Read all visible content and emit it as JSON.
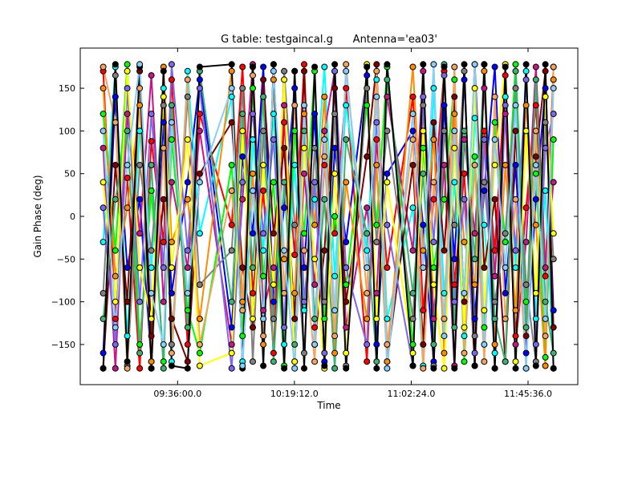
{
  "chart_data": {
    "type": "line",
    "title": "G table: testgaincal.g      Antenna='ea03'",
    "xlabel": "Time",
    "ylabel": "Gain Phase (deg)",
    "xlim": [
      "09:00:00",
      "12:04:00"
    ],
    "ylim": [
      -197,
      197
    ],
    "xticks": [
      "09:36:00.0",
      "10:19:12.0",
      "11:02:24.0",
      "11:45:36.0"
    ],
    "yticks": [
      150,
      100,
      50,
      0,
      -50,
      -100,
      -150
    ],
    "grid": false,
    "markers": "circle, black edge",
    "x": [
      "09:08:30",
      "09:13:00",
      "09:17:24",
      "09:22:00",
      "09:26:18",
      "09:30:48",
      "09:33:48",
      "09:39:42",
      "09:44:12",
      "09:56:00",
      "10:00:00",
      "10:03:48",
      "10:07:42",
      "10:11:30",
      "10:15:24",
      "10:19:18",
      "10:22:48",
      "10:26:42",
      "10:30:18",
      "10:34:06",
      "10:38:18",
      "10:46:00",
      "10:49:36",
      "10:53:30",
      "11:03:00",
      "11:06:48",
      "11:10:42",
      "11:14:36",
      "11:18:24",
      "11:22:00",
      "11:25:54",
      "11:29:24",
      "11:33:18",
      "11:37:12",
      "11:41:00",
      "11:44:54",
      "11:48:30",
      "11:52:00",
      "11:55:00"
    ],
    "series": [
      {
        "color": "#ff0000",
        "values": [
          170,
          -120,
          45,
          -178,
          88,
          -30,
          160,
          -150,
          120,
          -10,
          175,
          -90,
          30,
          -160,
          110,
          -45,
          178,
          -130,
          60,
          -20,
          150,
          -170,
          90,
          -60,
          140,
          -110,
          20,
          170,
          -80,
          50,
          -175,
          100,
          -40,
          165,
          -140,
          10,
          130,
          -70,
          175
        ]
      },
      {
        "color": "#0000ff",
        "values": [
          -160,
          140,
          -60,
          20,
          -170,
          110,
          -90,
          40,
          160,
          -130,
          70,
          -20,
          175,
          -100,
          10,
          150,
          -60,
          120,
          -170,
          80,
          -30,
          165,
          -150,
          50,
          100,
          -10,
          -170,
          130,
          -50,
          160,
          -120,
          30,
          175,
          -90,
          60,
          -160,
          20,
          150,
          -110
        ]
      },
      {
        "color": "#00ff00",
        "values": [
          120,
          -40,
          178,
          -150,
          30,
          -170,
          90,
          -110,
          -160,
          60,
          -140,
          150,
          -70,
          40,
          -175,
          100,
          -20,
          170,
          -120,
          0,
          -80,
          130,
          -10,
          175,
          -150,
          80,
          -60,
          20,
          160,
          -170,
          70,
          -130,
          110,
          -30,
          178,
          -100,
          50,
          -165,
          90
        ]
      },
      {
        "color": "#00ffff",
        "values": [
          -30,
          175,
          -140,
          100,
          -60,
          150,
          -170,
          170,
          -20,
          140,
          -170,
          90,
          -40,
          120,
          -150,
          60,
          -110,
          20,
          175,
          -70,
          130,
          -40,
          160,
          -120,
          10,
          -175,
          150,
          -90,
          40,
          -140,
          115,
          -10,
          -160,
          140,
          -60,
          170,
          -120,
          30,
          -178
        ]
      },
      {
        "color": "#c71585",
        "values": [
          80,
          -178,
          120,
          -20,
          165,
          -100,
          40,
          -60,
          100,
          -150,
          20,
          178,
          -110,
          -60,
          130,
          -170,
          50,
          -80,
          100,
          170,
          -130,
          10,
          -90,
          140,
          -40,
          170,
          -120,
          60,
          -175,
          90,
          -20,
          150,
          -70,
          120,
          -150,
          -30,
          175,
          -60,
          40
        ]
      },
      {
        "color": "#800000",
        "values": [
          -178,
          60,
          -100,
          170,
          -140,
          20,
          -120,
          -170,
          50,
          110,
          -60,
          -130,
          160,
          -20,
          80,
          -120,
          170,
          -150,
          -40,
          150,
          -100,
          70,
          178,
          -170,
          60,
          -150,
          110,
          -40,
          140,
          -100,
          178,
          -60,
          20,
          -170,
          100,
          -140,
          70,
          170,
          -130
        ]
      },
      {
        "color": "#ff8c00",
        "values": [
          150,
          -70,
          10,
          130,
          -170,
          175,
          -30,
          20,
          -120,
          170,
          -100,
          50,
          -150,
          160,
          -50,
          -90,
          120,
          -10,
          140,
          -160,
          40,
          -120,
          60,
          -170,
          175,
          -40,
          90,
          -160,
          120,
          -30,
          -80,
          170,
          -150,
          60,
          -110,
          130,
          -10,
          -175,
          160
        ]
      },
      {
        "color": "#808080",
        "values": [
          -90,
          165,
          -175,
          60,
          -40,
          130,
          -150,
          140,
          -80,
          -40,
          150,
          -170,
          100,
          -120,
          170,
          -10,
          -160,
          80,
          -100,
          120,
          -175,
          150,
          -30,
          100,
          -120,
          130,
          -175,
          100,
          -10,
          170,
          -140,
          40,
          -100,
          -20,
          150,
          -80,
          -170,
          110,
          -50
        ]
      },
      {
        "color": "#7b68ee",
        "values": [
          10,
          -150,
          150,
          -100,
          120,
          -60,
          178,
          -40,
          150,
          -178,
          40,
          120,
          -20,
          90,
          -130,
          170,
          -100,
          40,
          -160,
          170,
          -60,
          -150,
          110,
          -10,
          -175,
          140,
          -30,
          165,
          -100,
          20,
          -160,
          90,
          -178,
          130,
          -40,
          160,
          -150,
          80,
          120
        ]
      },
      {
        "color": "#f4a460",
        "values": [
          175,
          110,
          -178,
          150,
          -178,
          80,
          -160,
          160,
          -150,
          30,
          -110,
          165,
          -140,
          178,
          -90,
          130,
          -40,
          -170,
          70,
          -140,
          178,
          -90,
          170,
          -150,
          90,
          -178,
          40,
          -120,
          175,
          -160,
          60,
          -170,
          140,
          -120,
          20,
          -178,
          100,
          -140,
          175
        ]
      },
      {
        "color": "#3cb371",
        "values": [
          -120,
          20,
          100,
          -160,
          60,
          -178,
          130,
          -130,
          170,
          -100,
          120,
          -60,
          140,
          -170,
          40,
          -150,
          100,
          -120,
          20,
          -178,
          90,
          -20,
          -170,
          160,
          -90,
          50,
          -150,
          178,
          -130,
          100,
          -50,
          178,
          -120,
          -170,
          170,
          -130,
          160,
          -100,
          -160
        ]
      },
      {
        "color": "#ffff00",
        "values": [
          40,
          -100,
          170,
          -60,
          -120,
          140,
          -60,
          90,
          -175,
          -160,
          100,
          -120,
          60,
          -80,
          160,
          -170,
          80,
          -50,
          -178,
          50,
          -160,
          178,
          -120,
          40,
          -160,
          100,
          -80,
          -178,
          80,
          -130,
          150,
          -110,
          60,
          178,
          -170,
          100,
          -90,
          140,
          -20
        ]
      },
      {
        "color": "#000000",
        "values": [
          -178,
          178,
          -170,
          175,
          -178,
          170,
          -175,
          -178,
          175,
          178,
          -178,
          175,
          -175,
          178,
          -178,
          170,
          -178,
          175,
          -175,
          178,
          -178,
          175,
          -178,
          178,
          -175,
          178,
          -178,
          175,
          -178,
          178,
          -175,
          178,
          -178,
          175,
          -178,
          178,
          -175,
          178,
          -178
        ]
      },
      {
        "color": "#87cefa",
        "values": [
          100,
          -130,
          60,
          178,
          -90,
          -150,
          110,
          -90,
          40,
          150,
          -175,
          30,
          -120,
          170,
          -40,
          -178,
          130,
          -150,
          90,
          -110,
          170,
          -60,
          140,
          -178,
          120,
          -60,
          178,
          -140,
          100,
          -90,
          178,
          -150,
          90,
          -60,
          130,
          -178,
          60,
          -120,
          150
        ]
      }
    ]
  }
}
